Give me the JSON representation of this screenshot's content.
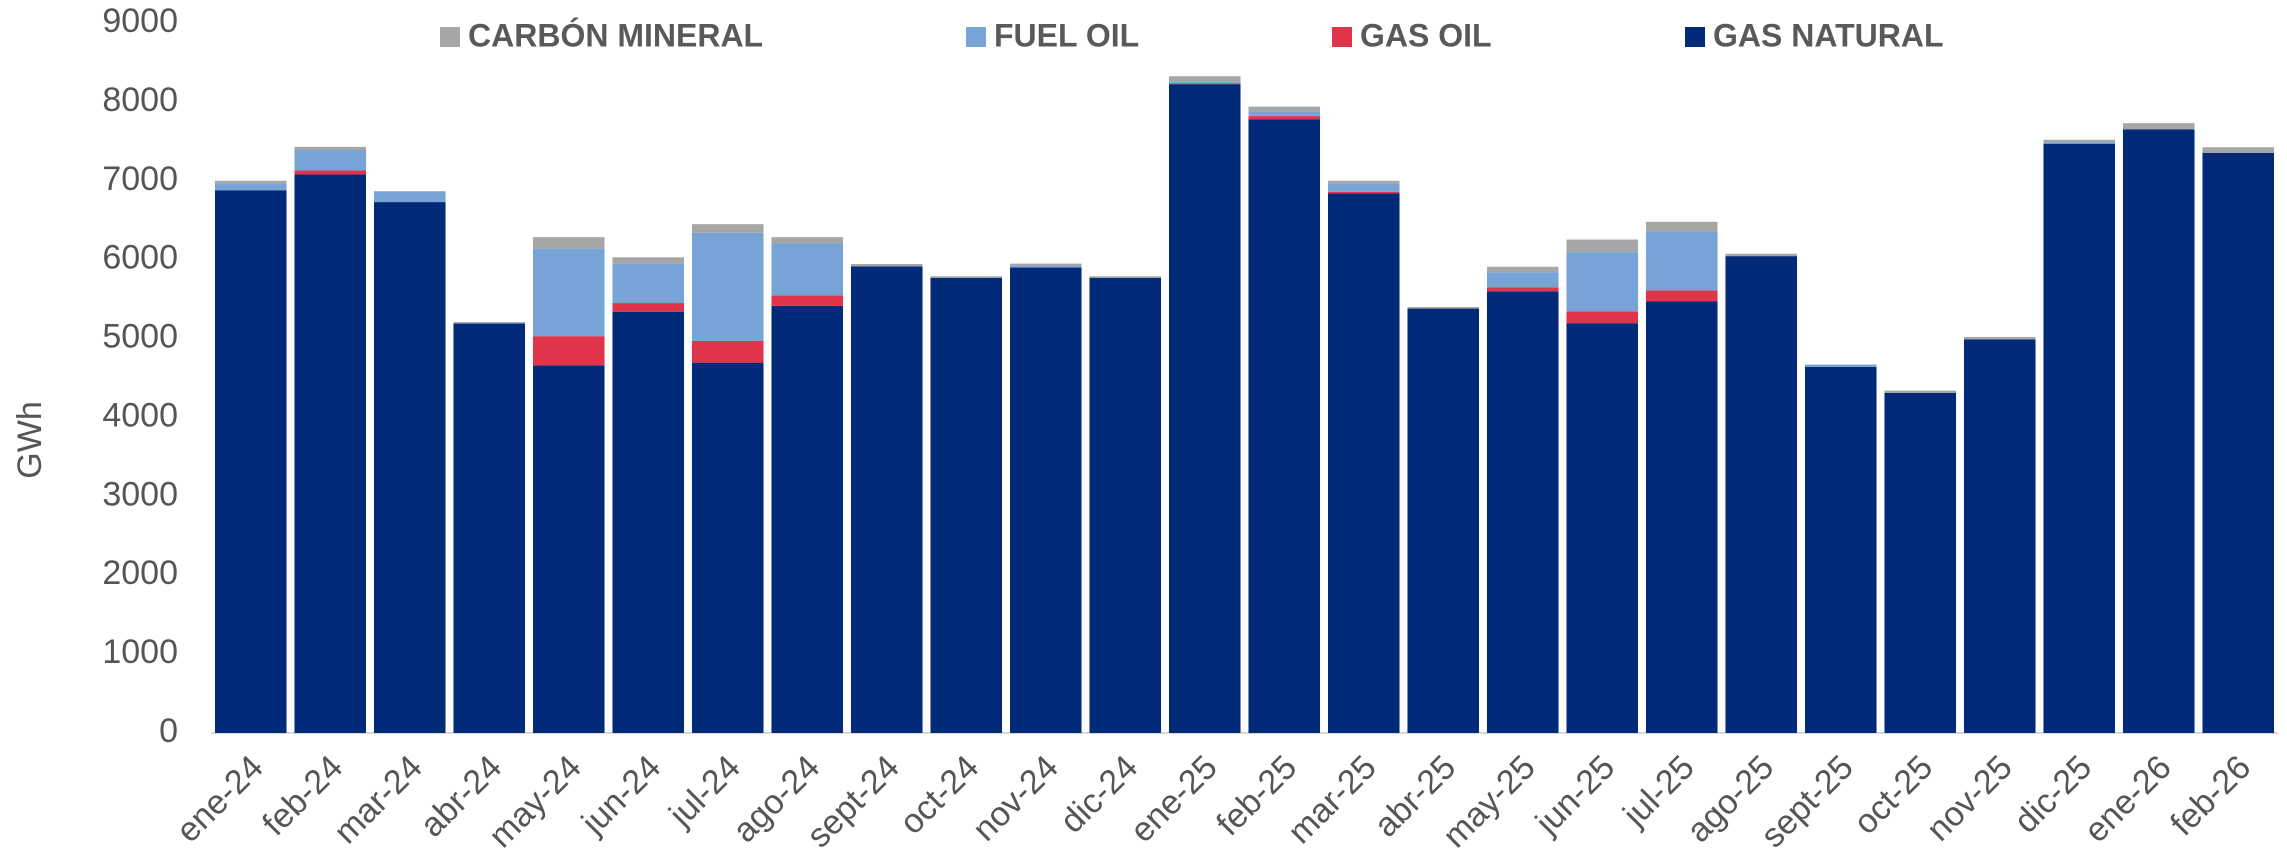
{
  "chart_data": {
    "type": "stacked_bar",
    "y_label": "GWh",
    "categories": [
      "ene-24",
      "feb-24",
      "mar-24",
      "abr-24",
      "may-24",
      "jun-24",
      "jul-24",
      "ago-24",
      "sept-24",
      "oct-24",
      "nov-24",
      "dic-24",
      "ene-25",
      "feb-25",
      "mar-25",
      "abr-25",
      "may-25",
      "jun-25",
      "jul-25",
      "ago-25",
      "sept-25",
      "oct-25",
      "nov-25",
      "dic-25",
      "ene-26",
      "feb-26"
    ],
    "series": [
      {
        "name": "CARBÓN MINERAL",
        "color": "#a6a6a6",
        "values": [
          30,
          40,
          10,
          10,
          145,
          80,
          110,
          75,
          30,
          20,
          30,
          20,
          70,
          60,
          40,
          20,
          70,
          160,
          120,
          30,
          0,
          30,
          30,
          30,
          80,
          70
        ]
      },
      {
        "name": "FUEL OIL",
        "color": "#77a3d6",
        "values": [
          90,
          260,
          130,
          10,
          1110,
          500,
          1370,
          665,
          0,
          0,
          20,
          0,
          20,
          60,
          100,
          0,
          190,
          750,
          750,
          0,
          30,
          0,
          0,
          20,
          0,
          0
        ]
      },
      {
        "name": "GAS OIL",
        "color": "#e0344a",
        "values": [
          0,
          50,
          0,
          0,
          370,
          110,
          275,
          130,
          0,
          0,
          0,
          0,
          10,
          40,
          20,
          0,
          50,
          150,
          140,
          0,
          0,
          0,
          0,
          0,
          0,
          0
        ]
      },
      {
        "name": "GAS NATURAL",
        "color": "#012a78",
        "values": [
          6880,
          7080,
          6730,
          5190,
          4660,
          5340,
          4695,
          5415,
          5915,
          5770,
          5900,
          5770,
          8225,
          7780,
          6840,
          5380,
          5600,
          5195,
          5470,
          6045,
          4640,
          4310,
          4990,
          7470,
          7650,
          7355
        ]
      }
    ],
    "ylim": [
      0,
      9000
    ],
    "yticks": [
      0,
      1000,
      2000,
      3000,
      4000,
      5000,
      6000,
      7000,
      8000,
      9000
    ],
    "legend": "top"
  }
}
